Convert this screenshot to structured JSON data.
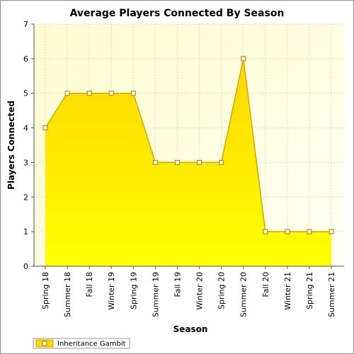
{
  "chart_data": {
    "type": "area",
    "title": "Average Players Connected By Season",
    "xlabel": "Season",
    "ylabel": "Players Connected",
    "categories": [
      "Spring 18",
      "Summer 18",
      "Fall 18",
      "Winter 19",
      "Spring 19",
      "Summer 19",
      "Fall 19",
      "Winter 20",
      "Spring 20",
      "Summer 20",
      "Fall 20",
      "Winter 21",
      "Spring 21",
      "Summer 21"
    ],
    "series": [
      {
        "name": "Inheritance Gambit",
        "values": [
          4,
          5,
          5,
          5,
          5,
          3,
          3,
          3,
          3,
          6,
          1,
          1,
          1,
          1
        ]
      }
    ],
    "ylim": [
      0,
      7
    ],
    "yticks": [
      "0",
      "1",
      "2",
      "3",
      "4",
      "5",
      "6",
      "7"
    ],
    "grid": true,
    "legend_position": "bottom-left",
    "colors": {
      "area_top": "#ffd700",
      "area_bottom": "#ffff00",
      "line": "#d4a800",
      "marker_fill": "#fffbe6",
      "plot_bg_top": "#fffbd0",
      "plot_bg_bottom": "#fffff2",
      "grid": "#c8c8b4"
    }
  }
}
